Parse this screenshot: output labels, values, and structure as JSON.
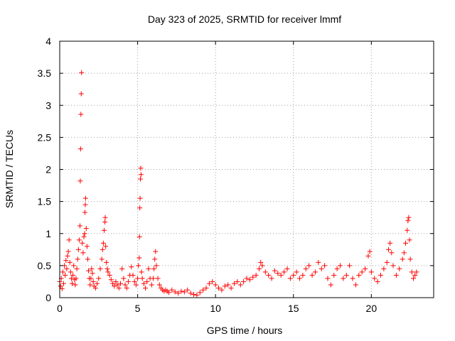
{
  "chart_data": {
    "type": "scatter",
    "title": "Day 323 of 2025, SRMTID for receiver lmmf",
    "xlabel": "GPS time / hours",
    "ylabel": "SRMTID / TECUs",
    "xlim": [
      0,
      24
    ],
    "ylim": [
      0,
      4
    ],
    "xticks": [
      0,
      5,
      10,
      15,
      20
    ],
    "xtick_labels": [
      "0",
      "5",
      "10",
      "15",
      "20"
    ],
    "yticks": [
      0,
      0.5,
      1,
      1.5,
      2,
      2.5,
      3,
      3.5,
      4
    ],
    "ytick_labels": [
      "0",
      "0.5",
      "1",
      "1.5",
      "2",
      "2.5",
      "3",
      "3.5",
      "4"
    ],
    "grid": true,
    "marker": "+",
    "series": [
      {
        "name": "SRMTID",
        "color": "#ff0000",
        "points": [
          [
            0.0,
            0.25
          ],
          [
            0.05,
            0.18
          ],
          [
            0.1,
            0.3
          ],
          [
            0.15,
            0.14
          ],
          [
            0.2,
            0.4
          ],
          [
            0.25,
            0.22
          ],
          [
            0.3,
            0.5
          ],
          [
            0.35,
            0.35
          ],
          [
            0.4,
            0.58
          ],
          [
            0.45,
            0.45
          ],
          [
            0.5,
            0.65
          ],
          [
            0.55,
            0.72
          ],
          [
            0.6,
            0.9
          ],
          [
            0.65,
            0.55
          ],
          [
            0.7,
            0.4
          ],
          [
            0.75,
            0.3
          ],
          [
            0.8,
            0.22
          ],
          [
            0.85,
            0.35
          ],
          [
            0.9,
            0.5
          ],
          [
            0.95,
            0.28
          ],
          [
            1.0,
            0.2
          ],
          [
            1.05,
            0.3
          ],
          [
            1.1,
            0.45
          ],
          [
            1.15,
            0.6
          ],
          [
            1.2,
            0.75
          ],
          [
            1.25,
            0.9
          ],
          [
            1.3,
            1.12
          ],
          [
            1.32,
            1.82
          ],
          [
            1.34,
            2.32
          ],
          [
            1.36,
            2.86
          ],
          [
            1.38,
            3.18
          ],
          [
            1.4,
            3.51
          ],
          [
            1.45,
            0.85
          ],
          [
            1.5,
            0.7
          ],
          [
            1.55,
            0.95
          ],
          [
            1.6,
            1.0
          ],
          [
            1.62,
            1.33
          ],
          [
            1.64,
            1.45
          ],
          [
            1.66,
            1.55
          ],
          [
            1.7,
            1.08
          ],
          [
            1.75,
            0.8
          ],
          [
            1.8,
            0.6
          ],
          [
            1.85,
            0.42
          ],
          [
            1.9,
            0.3
          ],
          [
            1.95,
            0.2
          ],
          [
            2.0,
            0.3
          ],
          [
            2.05,
            0.45
          ],
          [
            2.1,
            0.38
          ],
          [
            2.15,
            0.25
          ],
          [
            2.2,
            0.18
          ],
          [
            2.3,
            0.15
          ],
          [
            2.4,
            0.22
          ],
          [
            2.5,
            0.3
          ],
          [
            2.6,
            0.45
          ],
          [
            2.7,
            0.6
          ],
          [
            2.75,
            0.75
          ],
          [
            2.8,
            0.85
          ],
          [
            2.85,
            1.05
          ],
          [
            2.9,
            1.18
          ],
          [
            2.92,
            1.25
          ],
          [
            2.95,
            0.8
          ],
          [
            3.0,
            0.55
          ],
          [
            3.05,
            0.45
          ],
          [
            3.1,
            0.4
          ],
          [
            3.2,
            0.35
          ],
          [
            3.3,
            0.28
          ],
          [
            3.4,
            0.22
          ],
          [
            3.5,
            0.18
          ],
          [
            3.6,
            0.25
          ],
          [
            3.7,
            0.2
          ],
          [
            3.8,
            0.15
          ],
          [
            3.9,
            0.22
          ],
          [
            4.0,
            0.45
          ],
          [
            4.1,
            0.3
          ],
          [
            4.2,
            0.2
          ],
          [
            4.3,
            0.15
          ],
          [
            4.4,
            0.25
          ],
          [
            4.5,
            0.35
          ],
          [
            4.6,
            0.48
          ],
          [
            4.7,
            0.35
          ],
          [
            4.8,
            0.25
          ],
          [
            4.9,
            0.2
          ],
          [
            5.0,
            0.3
          ],
          [
            5.05,
            0.5
          ],
          [
            5.1,
            0.62
          ],
          [
            5.12,
            0.95
          ],
          [
            5.14,
            1.4
          ],
          [
            5.16,
            1.55
          ],
          [
            5.18,
            1.85
          ],
          [
            5.2,
            2.02
          ],
          [
            5.22,
            1.92
          ],
          [
            5.25,
            0.4
          ],
          [
            5.3,
            0.3
          ],
          [
            5.4,
            0.22
          ],
          [
            5.5,
            0.15
          ],
          [
            5.6,
            0.25
          ],
          [
            5.7,
            0.45
          ],
          [
            5.8,
            0.3
          ],
          [
            5.9,
            0.2
          ],
          [
            6.0,
            0.3
          ],
          [
            6.05,
            0.45
          ],
          [
            6.1,
            0.6
          ],
          [
            6.15,
            0.72
          ],
          [
            6.2,
            0.5
          ],
          [
            6.3,
            0.3
          ],
          [
            6.4,
            0.2
          ],
          [
            6.5,
            0.15
          ],
          [
            6.6,
            0.12
          ],
          [
            6.7,
            0.1
          ],
          [
            6.8,
            0.12
          ],
          [
            6.9,
            0.1
          ],
          [
            7.0,
            0.08
          ],
          [
            7.2,
            0.12
          ],
          [
            7.4,
            0.09
          ],
          [
            7.6,
            0.07
          ],
          [
            7.8,
            0.1
          ],
          [
            8.0,
            0.09
          ],
          [
            8.2,
            0.12
          ],
          [
            8.4,
            0.07
          ],
          [
            8.6,
            0.05
          ],
          [
            8.8,
            0.04
          ],
          [
            9.0,
            0.08
          ],
          [
            9.2,
            0.12
          ],
          [
            9.4,
            0.15
          ],
          [
            9.6,
            0.22
          ],
          [
            9.8,
            0.25
          ],
          [
            10.0,
            0.2
          ],
          [
            10.2,
            0.15
          ],
          [
            10.4,
            0.12
          ],
          [
            10.6,
            0.18
          ],
          [
            10.8,
            0.2
          ],
          [
            11.0,
            0.15
          ],
          [
            11.2,
            0.22
          ],
          [
            11.4,
            0.25
          ],
          [
            11.6,
            0.2
          ],
          [
            11.8,
            0.25
          ],
          [
            12.0,
            0.3
          ],
          [
            12.2,
            0.28
          ],
          [
            12.4,
            0.32
          ],
          [
            12.6,
            0.35
          ],
          [
            12.8,
            0.45
          ],
          [
            12.9,
            0.55
          ],
          [
            13.0,
            0.5
          ],
          [
            13.2,
            0.4
          ],
          [
            13.4,
            0.35
          ],
          [
            13.6,
            0.3
          ],
          [
            13.8,
            0.42
          ],
          [
            14.0,
            0.38
          ],
          [
            14.2,
            0.35
          ],
          [
            14.4,
            0.4
          ],
          [
            14.6,
            0.45
          ],
          [
            14.8,
            0.3
          ],
          [
            15.0,
            0.35
          ],
          [
            15.2,
            0.4
          ],
          [
            15.4,
            0.3
          ],
          [
            15.6,
            0.35
          ],
          [
            15.8,
            0.45
          ],
          [
            16.0,
            0.5
          ],
          [
            16.2,
            0.35
          ],
          [
            16.4,
            0.4
          ],
          [
            16.6,
            0.55
          ],
          [
            16.8,
            0.45
          ],
          [
            17.0,
            0.5
          ],
          [
            17.2,
            0.3
          ],
          [
            17.4,
            0.2
          ],
          [
            17.6,
            0.35
          ],
          [
            17.8,
            0.45
          ],
          [
            18.0,
            0.5
          ],
          [
            18.2,
            0.3
          ],
          [
            18.4,
            0.35
          ],
          [
            18.6,
            0.5
          ],
          [
            18.8,
            0.3
          ],
          [
            19.0,
            0.2
          ],
          [
            19.2,
            0.35
          ],
          [
            19.4,
            0.4
          ],
          [
            19.6,
            0.45
          ],
          [
            19.8,
            0.65
          ],
          [
            19.9,
            0.72
          ],
          [
            20.0,
            0.4
          ],
          [
            20.2,
            0.3
          ],
          [
            20.4,
            0.25
          ],
          [
            20.6,
            0.35
          ],
          [
            20.8,
            0.45
          ],
          [
            21.0,
            0.55
          ],
          [
            21.1,
            0.75
          ],
          [
            21.2,
            0.85
          ],
          [
            21.3,
            0.7
          ],
          [
            21.4,
            0.5
          ],
          [
            21.6,
            0.35
          ],
          [
            21.8,
            0.45
          ],
          [
            22.0,
            0.6
          ],
          [
            22.1,
            0.7
          ],
          [
            22.2,
            0.85
          ],
          [
            22.3,
            1.05
          ],
          [
            22.35,
            1.2
          ],
          [
            22.4,
            1.25
          ],
          [
            22.45,
            0.9
          ],
          [
            22.5,
            0.6
          ],
          [
            22.6,
            0.4
          ],
          [
            22.7,
            0.3
          ],
          [
            22.8,
            0.35
          ],
          [
            22.9,
            0.4
          ]
        ]
      }
    ]
  }
}
